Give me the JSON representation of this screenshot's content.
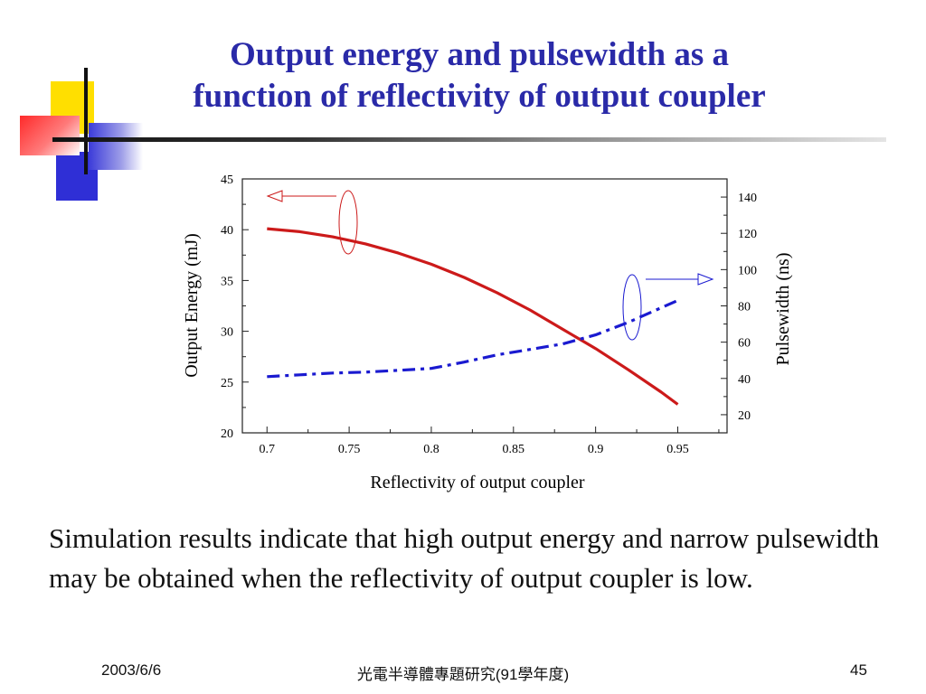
{
  "slide": {
    "title_lines": [
      "Output energy and pulsewidth as a",
      "function of reflectivity of output coupler"
    ],
    "caption": "Simulation results indicate that high output energy and narrow pulsewidth may be obtained when the reflectivity of output coupler is low.",
    "footer": {
      "date": "2003/6/6",
      "course": "光電半導體專題研究(91學年度)",
      "page": "45"
    }
  },
  "colors": {
    "title": "#2a2aa8",
    "energy": "#cc1a1a",
    "pulsewidth": "#1a1ad0"
  },
  "chart_data": {
    "type": "line",
    "xlabel": "Reflectivity of output coupler",
    "x_ticks": [
      "0.7",
      "0.75",
      "0.8",
      "0.85",
      "0.9",
      "0.95"
    ],
    "xlim": [
      0.685,
      0.98
    ],
    "left_axis": {
      "label": "Output Energy (mJ)",
      "ylim": [
        20,
        45
      ],
      "ticks": [
        "20",
        "25",
        "30",
        "35",
        "40",
        "45"
      ]
    },
    "right_axis": {
      "label": "Pulsewidth (ns)",
      "ylim": [
        10,
        150
      ],
      "ticks": [
        "20",
        "40",
        "60",
        "80",
        "100",
        "120",
        "140"
      ]
    },
    "series": [
      {
        "name": "Output Energy",
        "axis": "left",
        "style": "solid",
        "x": [
          0.7,
          0.72,
          0.74,
          0.76,
          0.78,
          0.8,
          0.82,
          0.84,
          0.86,
          0.88,
          0.9,
          0.92,
          0.94,
          0.95
        ],
        "values": [
          40.1,
          39.8,
          39.3,
          38.6,
          37.7,
          36.6,
          35.3,
          33.8,
          32.1,
          30.2,
          28.3,
          26.2,
          24.0,
          22.8
        ]
      },
      {
        "name": "Pulsewidth",
        "axis": "right",
        "style": "dashdot",
        "x": [
          0.7,
          0.72,
          0.74,
          0.76,
          0.78,
          0.8,
          0.82,
          0.84,
          0.86,
          0.88,
          0.9,
          0.92,
          0.94,
          0.95
        ],
        "values": [
          41,
          42,
          43,
          43.5,
          44.5,
          45.5,
          49,
          53,
          56,
          59,
          64,
          71,
          79,
          83
        ]
      }
    ]
  }
}
